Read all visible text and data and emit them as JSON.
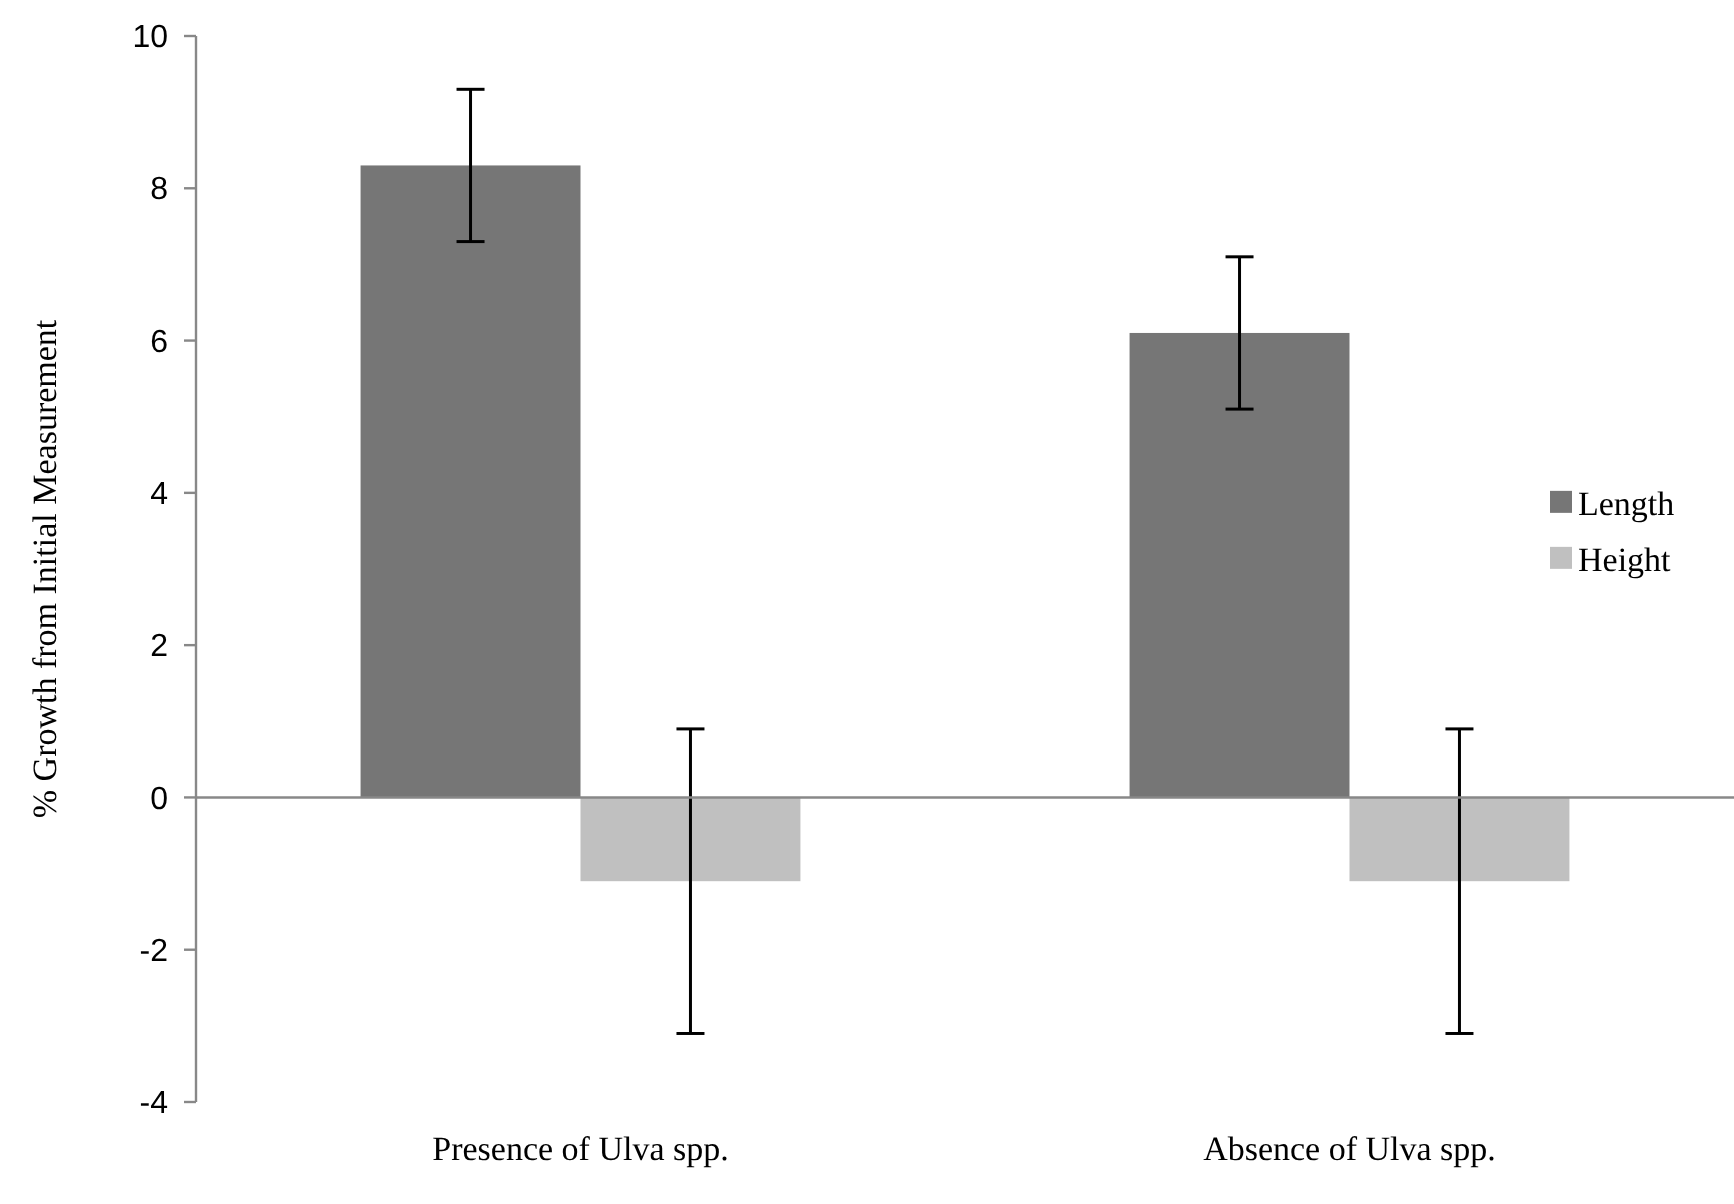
{
  "chart_data": {
    "type": "bar",
    "ylabel": "% Growth from Initial Measurement",
    "categories": [
      "Presence of Ulva spp.",
      "Absence of Ulva spp."
    ],
    "series": [
      {
        "name": "Length",
        "color": "#767676",
        "values": [
          8.3,
          6.1
        ],
        "errors": [
          1,
          1
        ]
      },
      {
        "name": "Height",
        "color": "#c0c0c0",
        "values": [
          -1.1,
          -1.1
        ],
        "errors": [
          2,
          2
        ]
      }
    ],
    "ylim": [
      -4,
      10
    ],
    "yticks": [
      -4,
      -2,
      0,
      2,
      4,
      6,
      8,
      10
    ],
    "legend": "right"
  }
}
